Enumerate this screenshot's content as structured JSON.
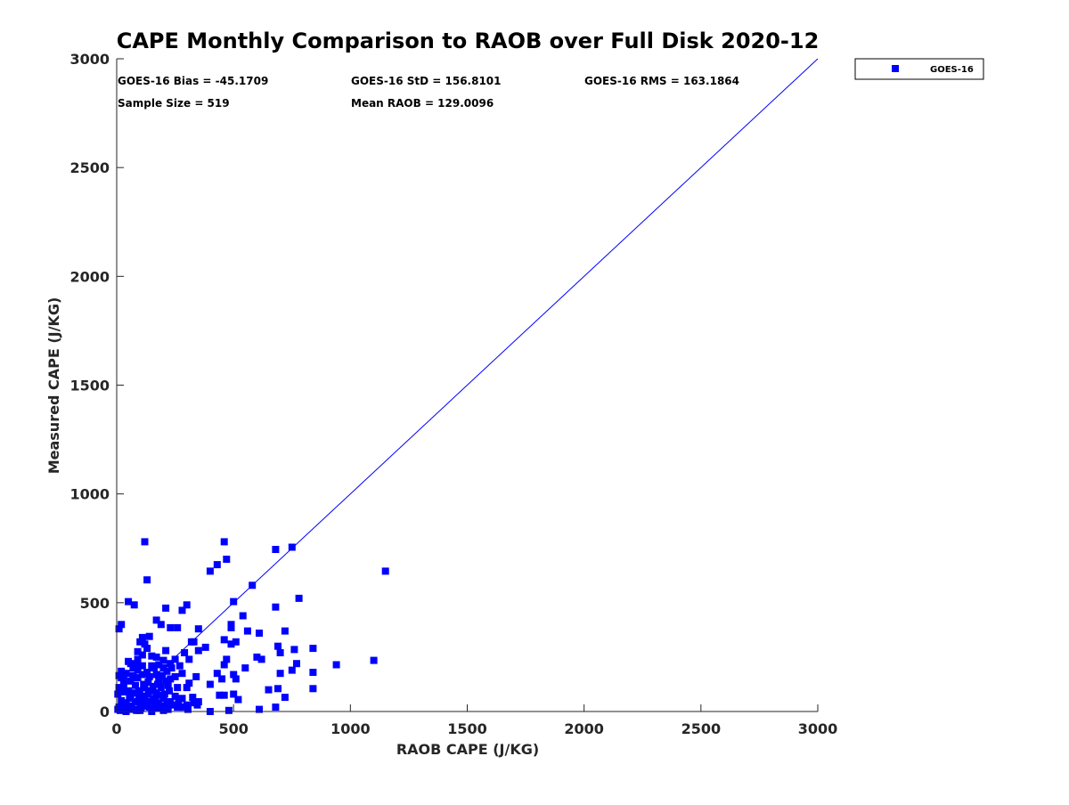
{
  "chart_data": {
    "type": "scatter",
    "title": "CAPE Monthly Comparison to RAOB over Full Disk 2020-12",
    "xlabel": "RAOB CAPE (J/KG)",
    "ylabel": "Measured CAPE (J/KG)",
    "xlim": [
      0,
      3000
    ],
    "ylim": [
      0,
      3000
    ],
    "xticks": [
      0,
      500,
      1000,
      1500,
      2000,
      2500,
      3000
    ],
    "yticks": [
      0,
      500,
      1000,
      1500,
      2000,
      2500,
      3000
    ],
    "xtick_labels": [
      "0",
      "500",
      "1000",
      "1500",
      "2000",
      "2500",
      "3000"
    ],
    "ytick_labels": [
      "0",
      "500",
      "1000",
      "1500",
      "2000",
      "2500",
      "3000"
    ],
    "legend": {
      "entries": [
        "GOES-16"
      ],
      "position": "outside-top-right"
    },
    "reference_line": {
      "from": [
        0,
        0
      ],
      "to": [
        3000,
        3000
      ],
      "color": "#0000ff"
    },
    "stats": {
      "bias": "GOES-16 Bias = -45.1709",
      "std": "GOES-16 StD = 156.8101",
      "rms": "GOES-16 RMS = 163.1864",
      "sample_size": "Sample Size = 519",
      "mean_raob": "Mean RAOB = 129.0096"
    },
    "series": [
      {
        "name": "GOES-16",
        "color": "#0000ff",
        "marker": "square",
        "points": [
          [
            20,
            400
          ],
          [
            10,
            380
          ],
          [
            50,
            505
          ],
          [
            75,
            490
          ],
          [
            120,
            780
          ],
          [
            130,
            605
          ],
          [
            460,
            780
          ],
          [
            470,
            700
          ],
          [
            400,
            645
          ],
          [
            430,
            675
          ],
          [
            680,
            745
          ],
          [
            750,
            755
          ],
          [
            1150,
            645
          ],
          [
            580,
            580
          ],
          [
            500,
            505
          ],
          [
            780,
            520
          ],
          [
            680,
            480
          ],
          [
            540,
            440
          ],
          [
            490,
            400
          ],
          [
            490,
            385
          ],
          [
            560,
            370
          ],
          [
            610,
            360
          ],
          [
            720,
            370
          ],
          [
            460,
            330
          ],
          [
            490,
            310
          ],
          [
            510,
            320
          ],
          [
            690,
            300
          ],
          [
            700,
            270
          ],
          [
            760,
            285
          ],
          [
            840,
            290
          ],
          [
            940,
            215
          ],
          [
            1100,
            235
          ],
          [
            600,
            250
          ],
          [
            620,
            240
          ],
          [
            750,
            190
          ],
          [
            770,
            220
          ],
          [
            840,
            180
          ],
          [
            840,
            105
          ],
          [
            700,
            175
          ],
          [
            650,
            100
          ],
          [
            690,
            105
          ],
          [
            720,
            65
          ],
          [
            680,
            20
          ],
          [
            610,
            10
          ],
          [
            520,
            55
          ],
          [
            500,
            80
          ],
          [
            510,
            150
          ],
          [
            500,
            170
          ],
          [
            550,
            200
          ],
          [
            470,
            240
          ],
          [
            460,
            215
          ],
          [
            430,
            175
          ],
          [
            450,
            150
          ],
          [
            440,
            75
          ],
          [
            460,
            75
          ],
          [
            400,
            125
          ],
          [
            400,
            0
          ],
          [
            480,
            5
          ],
          [
            380,
            295
          ],
          [
            350,
            380
          ],
          [
            350,
            280
          ],
          [
            340,
            160
          ],
          [
            310,
            130
          ],
          [
            300,
            110
          ],
          [
            320,
            320
          ],
          [
            330,
            320
          ],
          [
            310,
            240
          ],
          [
            290,
            270
          ],
          [
            280,
            465
          ],
          [
            300,
            490
          ],
          [
            210,
            475
          ],
          [
            230,
            385
          ],
          [
            260,
            385
          ],
          [
            190,
            400
          ],
          [
            170,
            420
          ],
          [
            110,
            340
          ],
          [
            140,
            345
          ],
          [
            120,
            310
          ],
          [
            90,
            275
          ],
          [
            100,
            320
          ],
          [
            150,
            255
          ],
          [
            170,
            250
          ],
          [
            200,
            235
          ],
          [
            210,
            280
          ],
          [
            180,
            215
          ],
          [
            160,
            200
          ],
          [
            230,
            220
          ],
          [
            270,
            210
          ],
          [
            250,
            160
          ],
          [
            280,
            175
          ],
          [
            130,
            180
          ],
          [
            110,
            170
          ],
          [
            90,
            155
          ],
          [
            70,
            200
          ],
          [
            60,
            220
          ],
          [
            40,
            175
          ],
          [
            20,
            155
          ],
          [
            10,
            165
          ],
          [
            30,
            120
          ],
          [
            50,
            95
          ],
          [
            80,
            120
          ],
          [
            100,
            85
          ],
          [
            120,
            110
          ],
          [
            150,
            95
          ],
          [
            170,
            85
          ],
          [
            190,
            110
          ],
          [
            210,
            140
          ],
          [
            230,
            150
          ],
          [
            260,
            110
          ],
          [
            250,
            70
          ],
          [
            230,
            45
          ],
          [
            200,
            60
          ],
          [
            180,
            40
          ],
          [
            160,
            30
          ],
          [
            140,
            20
          ],
          [
            120,
            50
          ],
          [
            100,
            35
          ],
          [
            80,
            45
          ],
          [
            60,
            60
          ],
          [
            40,
            40
          ],
          [
            20,
            50
          ],
          [
            10,
            20
          ],
          [
            5,
            80
          ],
          [
            30,
            90
          ],
          [
            60,
            140
          ],
          [
            90,
            190
          ],
          [
            140,
            160
          ],
          [
            180,
            140
          ],
          [
            220,
            120
          ],
          [
            200,
            200
          ],
          [
            170,
            170
          ],
          [
            110,
            210
          ],
          [
            80,
            215
          ],
          [
            50,
            230
          ],
          [
            20,
            185
          ],
          [
            280,
            60
          ],
          [
            300,
            30
          ],
          [
            330,
            40
          ],
          [
            350,
            45
          ],
          [
            260,
            20
          ],
          [
            220,
            10
          ],
          [
            200,
            5
          ],
          [
            150,
            0
          ],
          [
            100,
            5
          ],
          [
            70,
            10
          ],
          [
            40,
            0
          ],
          [
            15,
            5
          ],
          [
            5,
            10
          ],
          [
            25,
            30
          ],
          [
            45,
            15
          ],
          [
            65,
            25
          ],
          [
            85,
            5
          ],
          [
            105,
            15
          ],
          [
            125,
            25
          ],
          [
            145,
            45
          ],
          [
            165,
            60
          ],
          [
            185,
            75
          ],
          [
            205,
            80
          ],
          [
            225,
            95
          ],
          [
            245,
            30
          ],
          [
            265,
            40
          ],
          [
            285,
            20
          ],
          [
            305,
            10
          ],
          [
            325,
            65
          ],
          [
            345,
            30
          ],
          [
            55,
            70
          ],
          [
            75,
            85
          ],
          [
            95,
            95
          ],
          [
            115,
            125
          ],
          [
            135,
            135
          ],
          [
            155,
            115
          ],
          [
            175,
            125
          ],
          [
            195,
            165
          ],
          [
            215,
            185
          ],
          [
            235,
            200
          ],
          [
            95,
            60
          ],
          [
            115,
            70
          ],
          [
            135,
            80
          ],
          [
            155,
            55
          ],
          [
            175,
            15
          ],
          [
            195,
            25
          ],
          [
            215,
            35
          ],
          [
            10,
            110
          ],
          [
            30,
            145
          ],
          [
            70,
            165
          ],
          [
            90,
            240
          ],
          [
            110,
            260
          ],
          [
            130,
            290
          ],
          [
            150,
            210
          ],
          [
            250,
            240
          ]
        ]
      }
    ]
  }
}
